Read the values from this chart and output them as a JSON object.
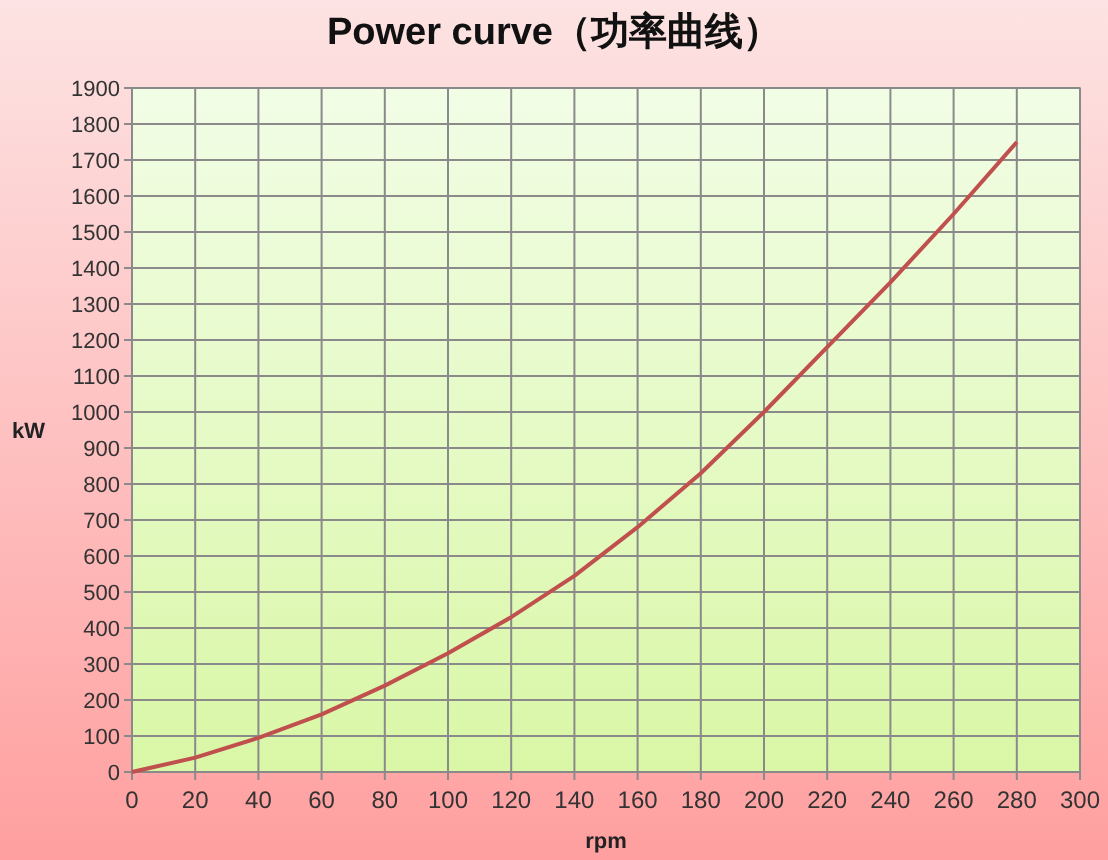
{
  "chart_data": {
    "type": "line",
    "title": "Power curve（功率曲线）",
    "xlabel": "rpm",
    "ylabel": "kW",
    "x": [
      0,
      20,
      40,
      60,
      80,
      100,
      120,
      140,
      160,
      180,
      200,
      220,
      240,
      260,
      280
    ],
    "series": [
      {
        "color": "#c0504d",
        "values": [
          0,
          40,
          95,
          160,
          240,
          330,
          430,
          545,
          680,
          830,
          1000,
          1180,
          1360,
          1550,
          1750
        ]
      }
    ],
    "xlim": [
      0,
      300
    ],
    "xticks": [
      0,
      20,
      40,
      60,
      80,
      100,
      120,
      140,
      160,
      180,
      200,
      220,
      240,
      260,
      280,
      300
    ],
    "ylim": [
      0,
      1900
    ],
    "yticks": [
      0,
      100,
      200,
      300,
      400,
      500,
      600,
      700,
      800,
      900,
      1000,
      1100,
      1200,
      1300,
      1400,
      1500,
      1600,
      1700,
      1800,
      1900
    ],
    "grid": true,
    "marker": "none",
    "line_style": "solid"
  }
}
